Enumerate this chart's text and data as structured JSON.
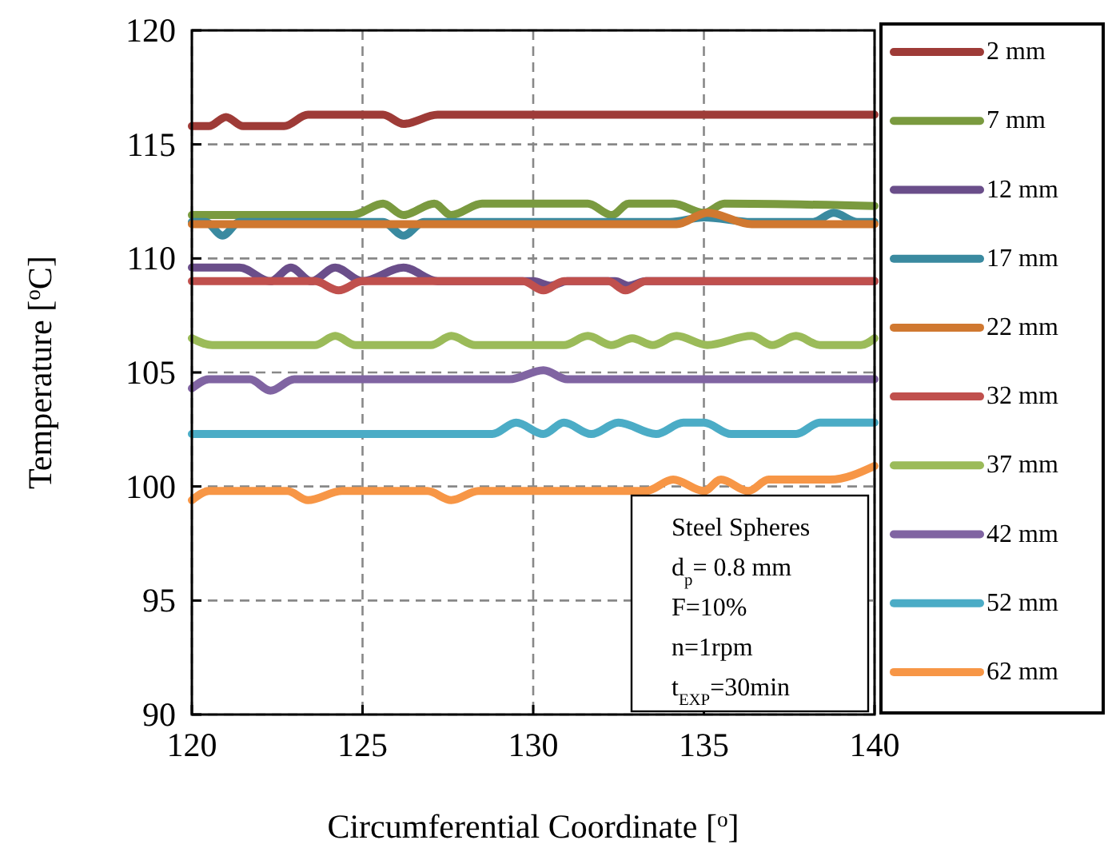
{
  "chart_data": {
    "type": "line",
    "xlabel": "Circumferential Coordinate [$^{o}$]",
    "ylabel": "Temperature [$^{o}$C]",
    "xlim": [
      120,
      140
    ],
    "xticks": [
      120,
      125,
      130,
      135,
      140
    ],
    "ylim": [
      90,
      120
    ],
    "yticks": [
      90,
      95,
      100,
      105,
      110,
      115,
      120
    ],
    "grid": true,
    "legend": "right",
    "line_style": "solid",
    "marker": "none",
    "annotations": [
      "Steel Spheres",
      "d$_{p}$= 0.8 mm",
      "F=10%",
      "n=1rpm",
      "t$_{EXP}$=30min"
    ],
    "series": [
      {
        "name": "2 mm",
        "color": "#9e3b37",
        "x": [
          120,
          120.5,
          121.0,
          121.5,
          122.7,
          123.4,
          125.6,
          126.2,
          127.2,
          140
        ],
        "values": [
          115.8,
          115.8,
          116.2,
          115.8,
          115.8,
          116.3,
          116.3,
          115.9,
          116.3,
          116.3
        ]
      },
      {
        "name": "7 mm",
        "color": "#7a9a3f",
        "x": [
          120,
          124.7,
          125.6,
          126.2,
          127.1,
          127.6,
          128.5,
          131.6,
          132.3,
          132.8,
          134.1,
          135.0,
          135.6,
          140
        ],
        "values": [
          111.9,
          111.9,
          112.4,
          111.9,
          112.4,
          111.9,
          112.4,
          112.4,
          111.9,
          112.4,
          112.4,
          112.0,
          112.4,
          112.3
        ]
      },
      {
        "name": "12 mm",
        "color": "#6a4e8a",
        "x": [
          120,
          121.4,
          122.3,
          122.9,
          123.5,
          124.2,
          125.0,
          126.2,
          127.2,
          130.0,
          130.5,
          131.0,
          132.4,
          132.8,
          133.3,
          140
        ],
        "values": [
          109.6,
          109.6,
          109.0,
          109.6,
          109.0,
          109.6,
          109.0,
          109.6,
          109.0,
          109.0,
          108.8,
          109.0,
          109.0,
          108.8,
          109.0,
          109.0
        ]
      },
      {
        "name": "17 mm",
        "color": "#3a8aa0",
        "x": [
          120,
          120.4,
          120.9,
          121.4,
          125.6,
          126.2,
          126.8,
          134.0,
          135.0,
          136.4,
          138.2,
          138.8,
          139.5,
          140
        ],
        "values": [
          111.6,
          111.6,
          111.0,
          111.6,
          111.6,
          111.0,
          111.6,
          111.6,
          111.8,
          111.6,
          111.6,
          112.0,
          111.6,
          111.6
        ]
      },
      {
        "name": "22 mm",
        "color": "#d07830",
        "x": [
          120,
          134.2,
          135.1,
          136.4,
          140
        ],
        "values": [
          111.5,
          111.5,
          112.0,
          111.5,
          111.5
        ]
      },
      {
        "name": "32 mm",
        "color": "#c0504d",
        "x": [
          120,
          123.6,
          124.3,
          125.0,
          129.7,
          130.3,
          130.9,
          132.2,
          132.7,
          133.3,
          140
        ],
        "values": [
          109.0,
          109.0,
          108.6,
          109.0,
          109.0,
          108.6,
          109.0,
          109.0,
          108.6,
          109.0,
          109.0
        ]
      },
      {
        "name": "37 mm",
        "color": "#9bbb59",
        "x": [
          120,
          120.6,
          123.6,
          124.2,
          124.8,
          127.0,
          127.6,
          128.3,
          130.9,
          131.6,
          132.3,
          132.9,
          133.5,
          134.2,
          135.1,
          136.4,
          137.0,
          137.7,
          138.4,
          139.6,
          140
        ],
        "values": [
          106.5,
          106.2,
          106.2,
          106.6,
          106.2,
          106.2,
          106.6,
          106.2,
          106.2,
          106.6,
          106.2,
          106.5,
          106.2,
          106.6,
          106.2,
          106.6,
          106.2,
          106.6,
          106.2,
          106.2,
          106.5
        ]
      },
      {
        "name": "42 mm",
        "color": "#8064a2",
        "x": [
          120,
          120.5,
          121.7,
          122.3,
          123.0,
          129.3,
          130.3,
          131.0,
          140
        ],
        "values": [
          104.3,
          104.7,
          104.7,
          104.2,
          104.7,
          104.7,
          105.1,
          104.7,
          104.7
        ]
      },
      {
        "name": "52 mm",
        "color": "#4bacc6",
        "x": [
          120,
          128.8,
          129.5,
          130.3,
          130.9,
          131.7,
          132.5,
          133.6,
          134.4,
          135.0,
          135.8,
          137.7,
          138.4,
          140
        ],
        "values": [
          102.3,
          102.3,
          102.8,
          102.3,
          102.8,
          102.3,
          102.8,
          102.3,
          102.8,
          102.8,
          102.3,
          102.3,
          102.8,
          102.8
        ]
      },
      {
        "name": "62 mm",
        "color": "#f79646",
        "x": [
          120,
          120.5,
          122.8,
          123.4,
          124.4,
          126.9,
          127.6,
          128.4,
          133.3,
          134.1,
          135.0,
          135.5,
          136.3,
          136.9,
          138.7,
          140
        ],
        "values": [
          99.4,
          99.8,
          99.8,
          99.4,
          99.8,
          99.8,
          99.4,
          99.8,
          99.8,
          100.3,
          99.8,
          100.3,
          99.8,
          100.3,
          100.3,
          100.9
        ]
      }
    ]
  }
}
